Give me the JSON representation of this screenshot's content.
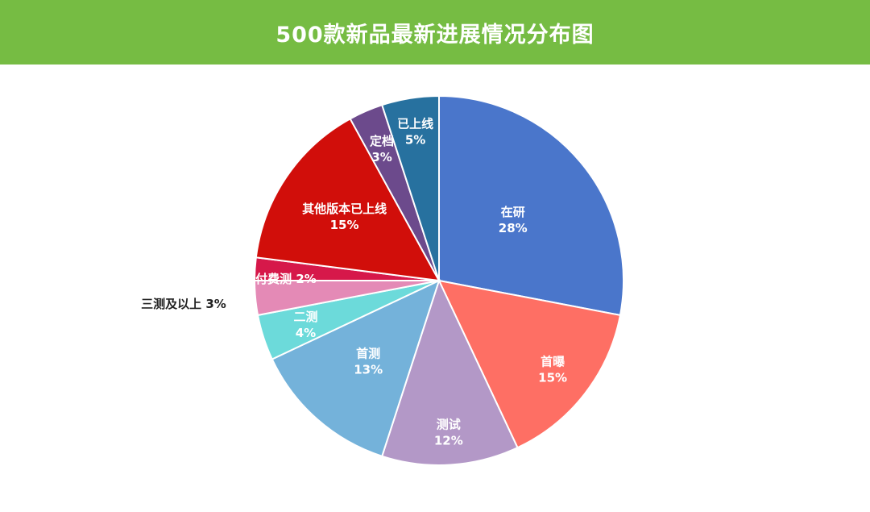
{
  "header": {
    "title": "500款新品最新进展情况分布图"
  },
  "colors": {
    "header_bg": "#76bc43"
  },
  "chart_data": {
    "type": "pie",
    "title": "500款新品最新进展情况分布图",
    "slices": [
      {
        "label": "在研",
        "value": 28,
        "pct_text": "28%",
        "color": "#4a76cb"
      },
      {
        "label": "首曝",
        "value": 15,
        "pct_text": "15%",
        "color": "#fe6f64"
      },
      {
        "label": "测试",
        "value": 12,
        "pct_text": "12%",
        "color": "#b398c7"
      },
      {
        "label": "首测",
        "value": 13,
        "pct_text": "13%",
        "color": "#74b2da"
      },
      {
        "label": "二测",
        "value": 4,
        "pct_text": "4%",
        "color": "#6cdada"
      },
      {
        "label": "三测及以上",
        "value": 3,
        "pct_text": "3%",
        "color": "#e48ab6"
      },
      {
        "label": "付费测",
        "value": 2,
        "pct_text": "2%",
        "color": "#d6184a"
      },
      {
        "label": "其他版本已上线",
        "value": 15,
        "pct_text": "15%",
        "color": "#d10e0a"
      },
      {
        "label": "定档",
        "value": 3,
        "pct_text": "3%",
        "color": "#6c4a8c"
      },
      {
        "label": "已上线",
        "value": 5,
        "pct_text": "5%",
        "color": "#27719f"
      }
    ]
  }
}
